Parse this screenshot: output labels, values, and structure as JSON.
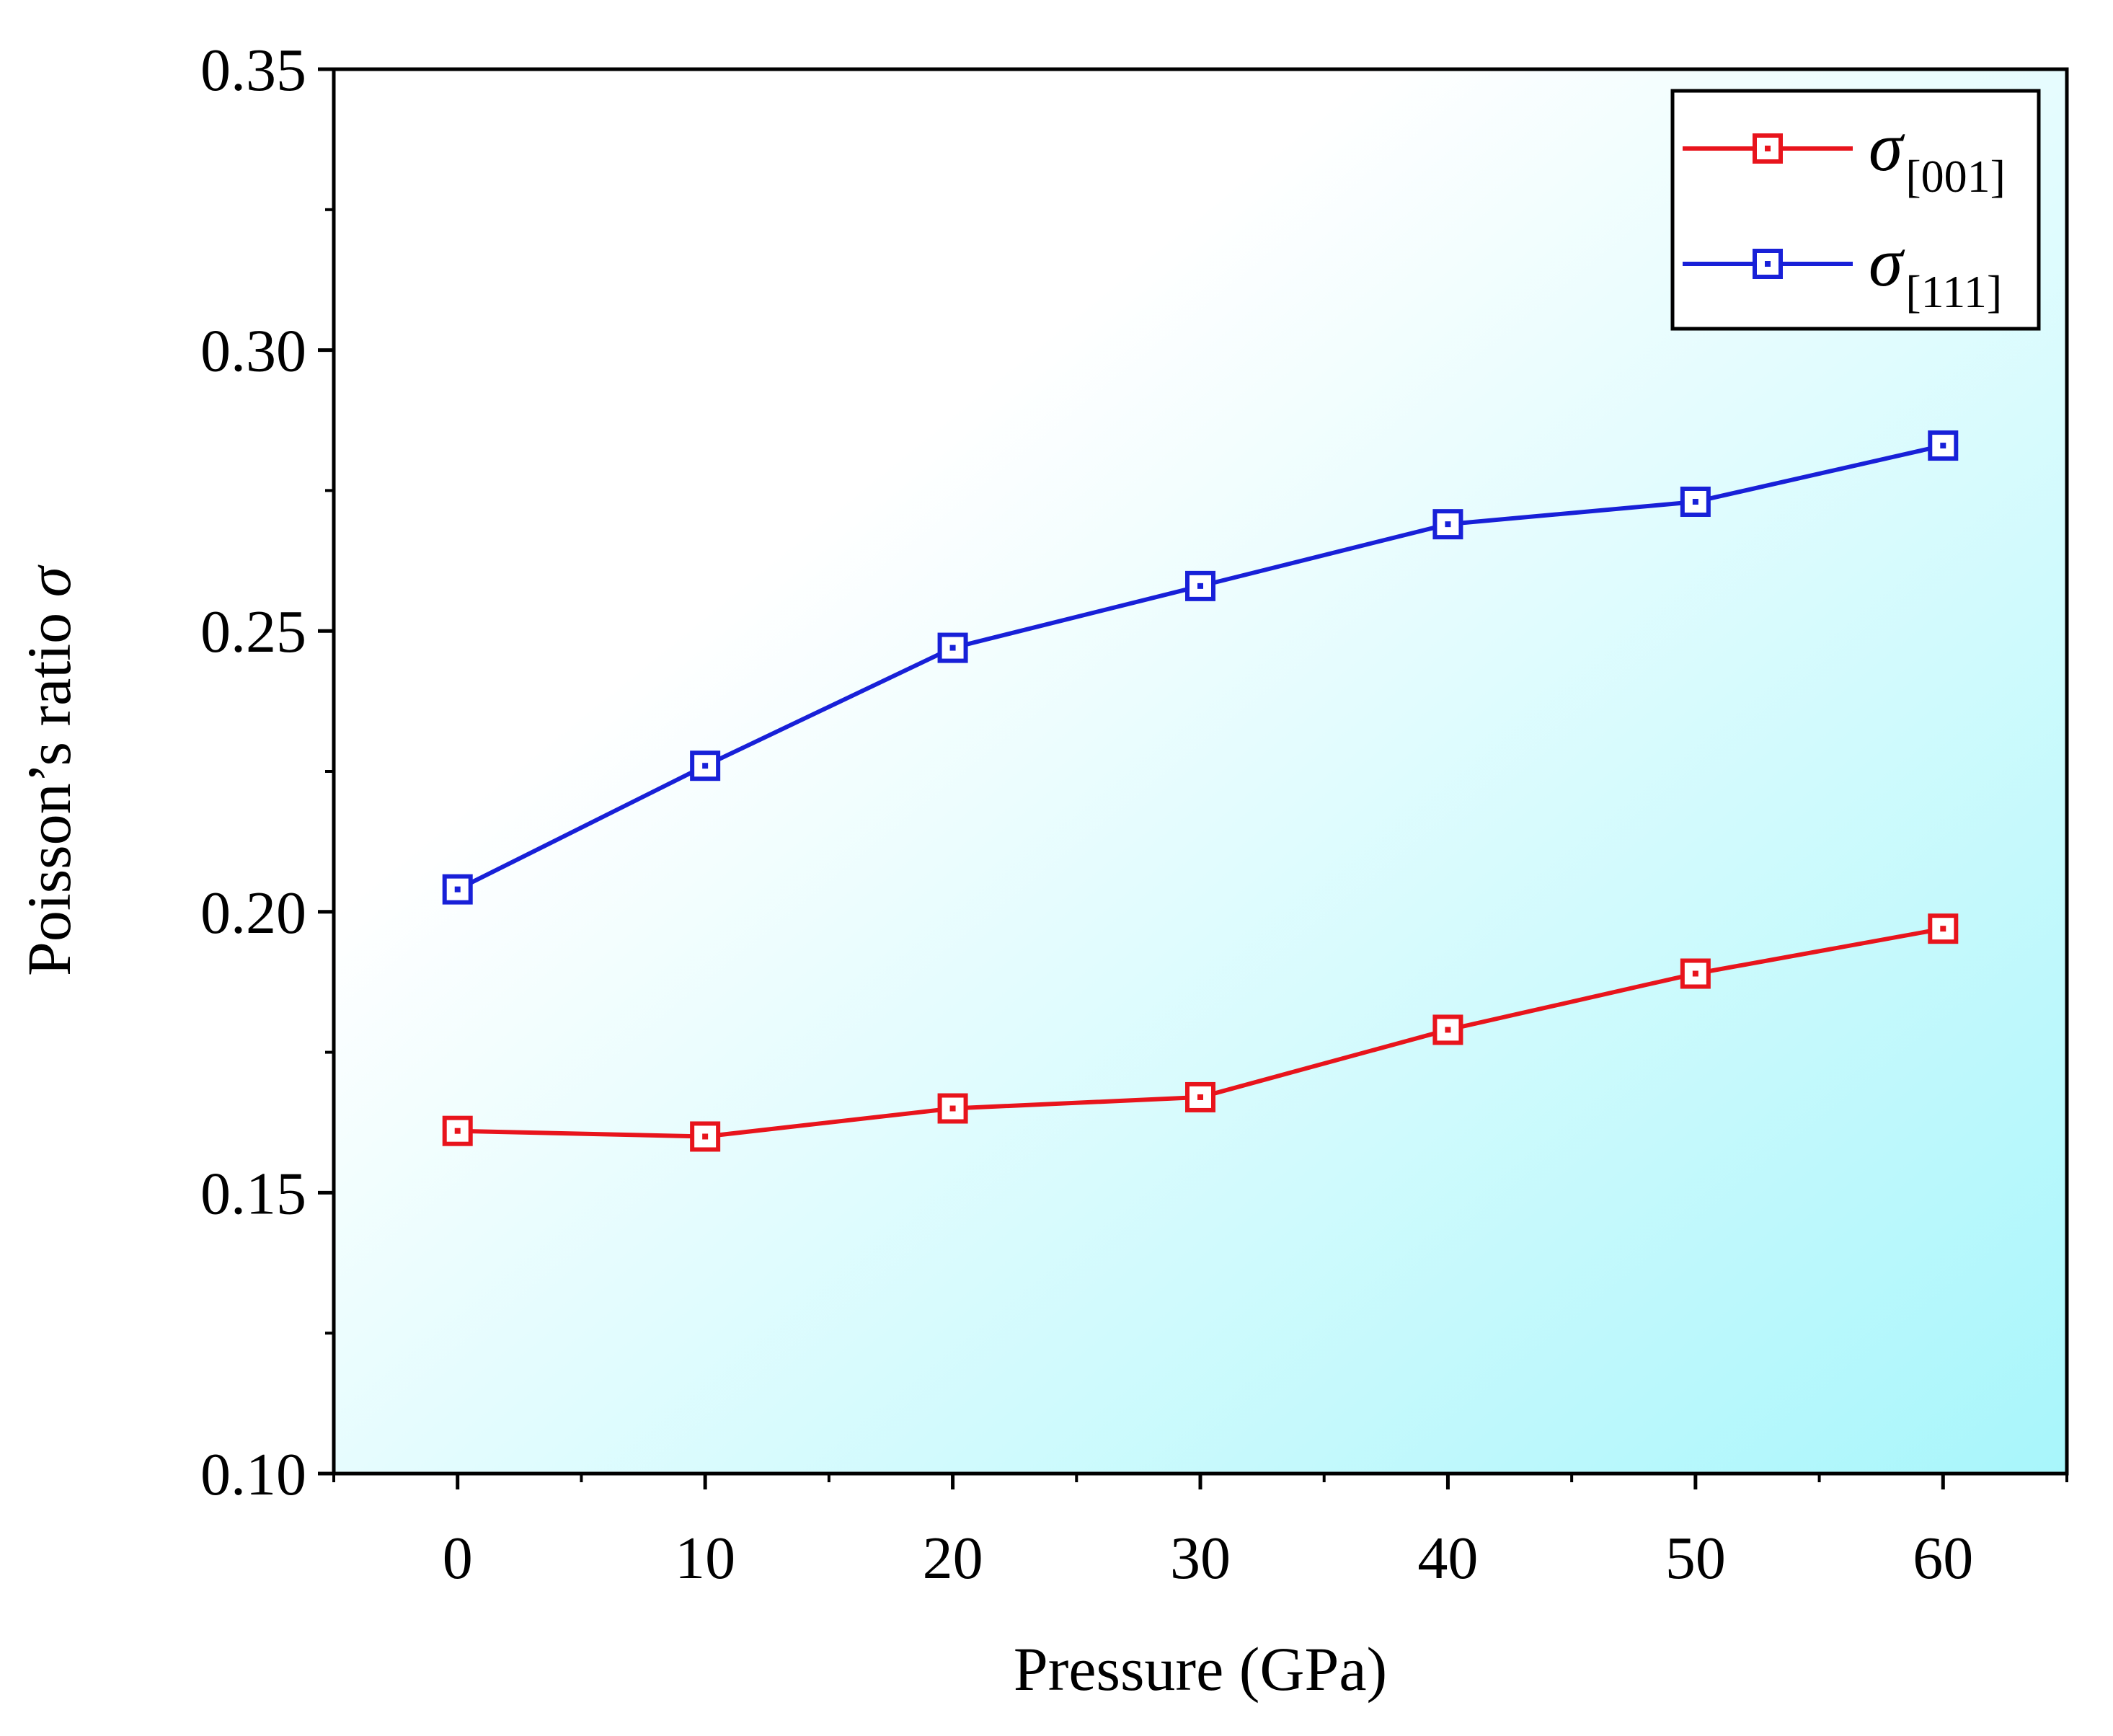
{
  "chart_data": {
    "type": "line",
    "xlabel": "Pressure (GPa)",
    "ylabel_main": "Poisson’s ratio",
    "ylabel_symbol": "σ",
    "xlim": [
      -5,
      65
    ],
    "ylim": [
      0.1,
      0.35
    ],
    "x_ticks": [
      "0",
      "10",
      "20",
      "30",
      "40",
      "50",
      "60"
    ],
    "y_ticks": [
      "0.10",
      "0.15",
      "0.20",
      "0.25",
      "0.30",
      "0.35"
    ],
    "x": [
      0,
      10,
      20,
      30,
      40,
      50,
      60
    ],
    "series": [
      {
        "name": "σ[001]",
        "symbol": "σ",
        "subscript": "[001]",
        "color": "#e8141c",
        "values": [
          0.161,
          0.16,
          0.165,
          0.167,
          0.179,
          0.189,
          0.197
        ]
      },
      {
        "name": "σ[111]",
        "symbol": "σ",
        "subscript": "[111]",
        "color": "#1820d8",
        "values": [
          0.204,
          0.226,
          0.247,
          0.258,
          0.269,
          0.273,
          0.283
        ]
      }
    ],
    "legend_position": "top-right",
    "background_gradient": [
      "#ffffff",
      "#a8f6fb"
    ]
  }
}
